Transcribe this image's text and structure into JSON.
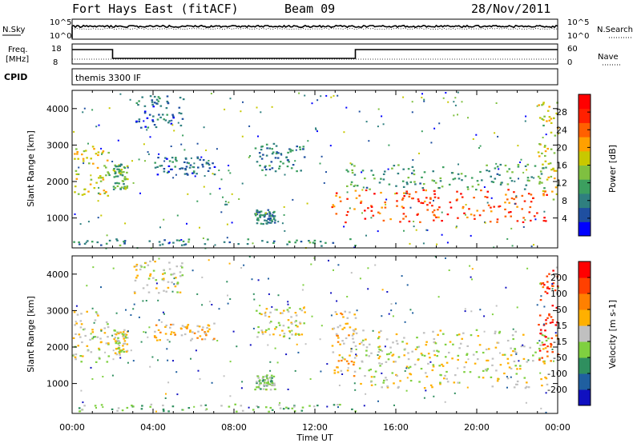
{
  "header": {
    "station": "Fort Hays East (fitACF)",
    "beam": "Beam 09",
    "date": "28/Nov/2011"
  },
  "noise_panel": {
    "left_label": "N.Sky",
    "left_ticks": [
      "10^5",
      "10^0"
    ],
    "right_label": "N.Search",
    "right_ticks": [
      "10^5",
      "10^0"
    ]
  },
  "freq_panel": {
    "left_label_line1": "Freq.",
    "left_label_line2": "[MHz]",
    "left_ticks": [
      "18",
      "8"
    ],
    "right_label": "Nave",
    "right_ticks": [
      "60",
      "0"
    ],
    "freq_segments": [
      {
        "start": 0.0,
        "end": 2.0,
        "level": "high"
      },
      {
        "start": 2.0,
        "end": 14.0,
        "level": "low"
      },
      {
        "start": 14.0,
        "end": 24.0,
        "level": "high"
      }
    ]
  },
  "cpid_panel": {
    "label": "CPID",
    "text": "themis 3300 IF"
  },
  "power_panel": {
    "ylabel": "Slant Range [km]",
    "yticks": [
      "4000",
      "3000",
      "2000",
      "1000"
    ],
    "colorbar_label": "Power [dB]",
    "colorbar_ticks": [
      "28",
      "24",
      "20",
      "16",
      "12",
      "8",
      "4"
    ],
    "colors": [
      "#0000ff",
      "#1f4fa0",
      "#2f7f7f",
      "#3c9f5f",
      "#7fc040",
      "#c8c800",
      "#ffa000",
      "#ff6000",
      "#ff2000",
      "#ff0000"
    ]
  },
  "velocity_panel": {
    "ylabel": "Slant Range [km]",
    "yticks": [
      "4000",
      "3000",
      "2000",
      "1000"
    ],
    "colorbar_label": "Velocity [m s-1]",
    "colorbar_ticks": [
      "200",
      "100",
      "50",
      "15",
      "-15",
      "-50",
      "-100",
      "-200"
    ],
    "colors": [
      "#1010c0",
      "#1f5fa0",
      "#2f8f5f",
      "#7fd040",
      "#c0c0c0",
      "#ffb000",
      "#ff8000",
      "#ff4000",
      "#ff0000"
    ]
  },
  "xaxis": {
    "label": "Time UT",
    "ticks": [
      "00:00",
      "04:00",
      "08:00",
      "12:00",
      "16:00",
      "20:00",
      "00:00"
    ]
  },
  "chart_data": [
    {
      "type": "heatmap",
      "title": "Power",
      "xlabel": "Time UT",
      "ylabel": "Slant Range [km]",
      "xlim": [
        0,
        24
      ],
      "ylim": [
        180,
        4500
      ],
      "colorbar": {
        "label": "Power [dB]",
        "range": [
          0,
          30
        ]
      },
      "regions": [
        {
          "t0": 0.0,
          "t1": 1.8,
          "r0": 1600,
          "r1": 3000,
          "value": 16
        },
        {
          "t0": 2.0,
          "t1": 2.7,
          "r0": 1800,
          "r1": 2500,
          "value": 12
        },
        {
          "t0": 3.0,
          "t1": 5.5,
          "r0": 3500,
          "r1": 4400,
          "value": 6
        },
        {
          "t0": 4.0,
          "t1": 7.0,
          "r0": 2200,
          "r1": 2700,
          "value": 6
        },
        {
          "t0": 9.0,
          "t1": 11.5,
          "r0": 2300,
          "r1": 3100,
          "value": 8
        },
        {
          "t0": 9.0,
          "t1": 10.0,
          "r0": 850,
          "r1": 1250,
          "value": 8
        },
        {
          "t0": 0.0,
          "t1": 14.0,
          "r0": 250,
          "r1": 450,
          "value": 8
        },
        {
          "t0": 12.8,
          "t1": 23.5,
          "r0": 900,
          "r1": 1800,
          "value": 24
        },
        {
          "t0": 13.5,
          "t1": 23.5,
          "r0": 1800,
          "r1": 2500,
          "value": 10
        },
        {
          "t0": 23.0,
          "t1": 24.0,
          "r0": 1500,
          "r1": 4200,
          "value": 16
        }
      ]
    },
    {
      "type": "heatmap",
      "title": "Velocity",
      "xlabel": "Time UT",
      "ylabel": "Slant Range [km]",
      "xlim": [
        0,
        24
      ],
      "ylim": [
        180,
        4500
      ],
      "colorbar": {
        "label": "Velocity [m s-1]",
        "range": [
          -200,
          200
        ]
      },
      "regions": [
        {
          "t0": 0.0,
          "t1": 1.8,
          "r0": 1600,
          "r1": 3000,
          "value": 0
        },
        {
          "t0": 2.0,
          "t1": 2.7,
          "r0": 1800,
          "r1": 2500,
          "value": 0
        },
        {
          "t0": 3.0,
          "t1": 5.5,
          "r0": 3500,
          "r1": 4400,
          "value": 0
        },
        {
          "t0": 4.0,
          "t1": 7.0,
          "r0": 2200,
          "r1": 2700,
          "value": 40
        },
        {
          "t0": 9.0,
          "t1": 11.5,
          "r0": 2300,
          "r1": 3100,
          "value": 0
        },
        {
          "t0": 9.0,
          "t1": 10.0,
          "r0": 850,
          "r1": 1250,
          "value": -30
        },
        {
          "t0": 0.0,
          "t1": 14.0,
          "r0": 250,
          "r1": 450,
          "value": -40
        },
        {
          "t0": 12.8,
          "t1": 14.0,
          "r0": 1200,
          "r1": 3000,
          "value": 40
        },
        {
          "t0": 14.0,
          "t1": 23.5,
          "r0": 900,
          "r1": 1800,
          "value": 0
        },
        {
          "t0": 13.5,
          "t1": 23.5,
          "r0": 1800,
          "r1": 2500,
          "value": 0
        },
        {
          "t0": 23.0,
          "t1": 24.0,
          "r0": 1500,
          "r1": 4200,
          "value": 150
        }
      ]
    }
  ]
}
